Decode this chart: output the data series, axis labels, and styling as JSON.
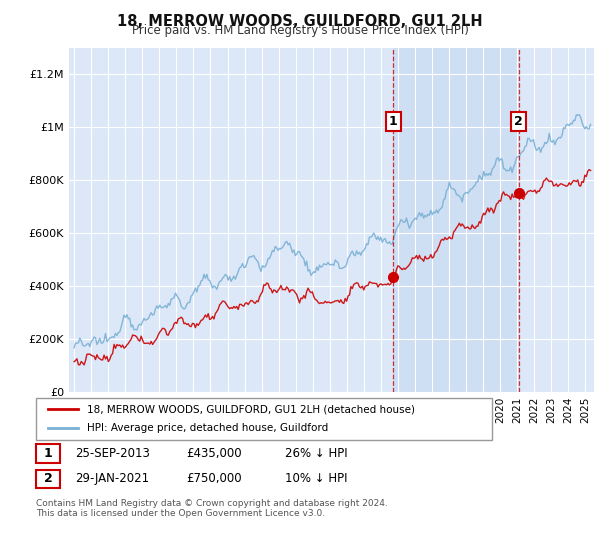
{
  "title": "18, MERROW WOODS, GUILDFORD, GU1 2LH",
  "subtitle": "Price paid vs. HM Land Registry's House Price Index (HPI)",
  "plot_bg_color": "#dce8f8",
  "shaded_region_color": "#c5d8f0",
  "ylabel_ticks": [
    "£0",
    "£200K",
    "£400K",
    "£600K",
    "£800K",
    "£1M",
    "£1.2M"
  ],
  "ytick_values": [
    0,
    200000,
    400000,
    600000,
    800000,
    1000000,
    1200000
  ],
  "ylim": [
    0,
    1300000
  ],
  "sale1": {
    "date_num": 2013.73,
    "price": 435000,
    "label": "1",
    "date_str": "25-SEP-2013",
    "note": "26% ↓ HPI"
  },
  "sale2": {
    "date_num": 2021.08,
    "price": 750000,
    "label": "2",
    "date_str": "29-JAN-2021",
    "note": "10% ↓ HPI"
  },
  "legend_label_red": "18, MERROW WOODS, GUILDFORD, GU1 2LH (detached house)",
  "legend_label_blue": "HPI: Average price, detached house, Guildford",
  "footer1": "Contains HM Land Registry data © Crown copyright and database right 2024.",
  "footer2": "This data is licensed under the Open Government Licence v3.0.",
  "red_color": "#cc0000",
  "blue_color": "#7ab0d4",
  "dashed_color": "#cc0000",
  "grid_color": "#ffffff",
  "xtick_start": 1995,
  "xtick_end": 2026
}
